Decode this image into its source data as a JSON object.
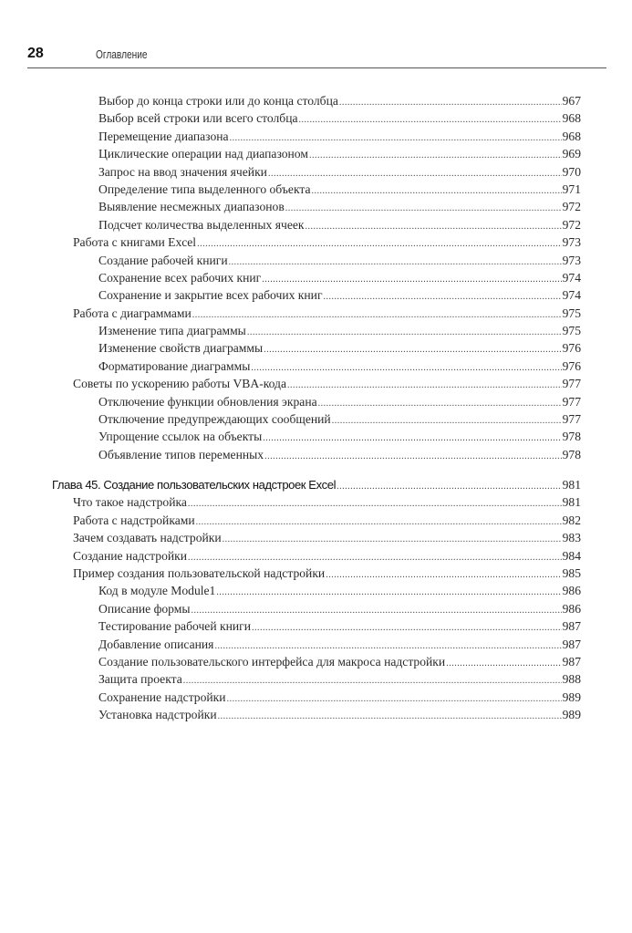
{
  "header": {
    "page_number": "28",
    "running_title": "Оглавление"
  },
  "block1": [
    {
      "level": 1,
      "title": "Выбор до конца строки или до конца столбца",
      "page": "967"
    },
    {
      "level": 1,
      "title": "Выбор всей строки или всего столбца",
      "page": "968"
    },
    {
      "level": 1,
      "title": "Перемещение диапазона",
      "page": "968"
    },
    {
      "level": 1,
      "title": "Циклические операции над диапазоном",
      "page": "969"
    },
    {
      "level": 1,
      "title": "Запрос на ввод значения ячейки",
      "page": "970"
    },
    {
      "level": 1,
      "title": "Определение типа выделенного объекта",
      "page": "971"
    },
    {
      "level": 1,
      "title": "Выявление несмежных диапазонов",
      "page": "972"
    },
    {
      "level": 1,
      "title": "Подсчет количества выделенных ячеек",
      "page": "972"
    },
    {
      "level": 0,
      "title": "Работа с книгами Excel",
      "page": "973"
    },
    {
      "level": 1,
      "title": "Создание рабочей книги",
      "page": "973"
    },
    {
      "level": 1,
      "title": "Сохранение всех рабочих книг",
      "page": "974"
    },
    {
      "level": 1,
      "title": "Сохранение и закрытие всех рабочих книг",
      "page": "974"
    },
    {
      "level": 0,
      "title": "Работа с диаграммами",
      "page": "975"
    },
    {
      "level": 1,
      "title": "Изменение типа диаграммы",
      "page": "975"
    },
    {
      "level": 1,
      "title": "Изменение свойств диаграммы",
      "page": "976"
    },
    {
      "level": 1,
      "title": "Форматирование диаграммы",
      "page": "976"
    },
    {
      "level": 0,
      "title": "Советы по ускорению работы VBA-кода",
      "page": "977"
    },
    {
      "level": 1,
      "title": "Отключение функции обновления экрана",
      "page": "977"
    },
    {
      "level": 1,
      "title": "Отключение предупреждающих сообщений",
      "page": "977"
    },
    {
      "level": 1,
      "title": "Упрощение ссылок на объекты",
      "page": "978"
    },
    {
      "level": 1,
      "title": "Объявление типов переменных",
      "page": "978"
    }
  ],
  "chapter": {
    "title": "Глава 45. Создание пользовательских надстроек Excel",
    "page": "981"
  },
  "block2": [
    {
      "level": 0,
      "title": "Что такое надстройка",
      "page": "981"
    },
    {
      "level": 0,
      "title": "Работа с надстройками",
      "page": "982"
    },
    {
      "level": 0,
      "title": "Зачем создавать надстройки",
      "page": "983"
    },
    {
      "level": 0,
      "title": "Создание надстройки",
      "page": "984"
    },
    {
      "level": 0,
      "title": "Пример создания пользовательской надстройки",
      "page": "985"
    },
    {
      "level": 1,
      "title": "Код в модуле Module1",
      "page": "986"
    },
    {
      "level": 1,
      "title": "Описание формы",
      "page": "986"
    },
    {
      "level": 1,
      "title": "Тестирование рабочей книги",
      "page": "987"
    },
    {
      "level": 1,
      "title": "Добавление описания",
      "page": "987"
    },
    {
      "level": 1,
      "title": "Создание пользовательского интерфейса для макроса надстройки",
      "page": "987"
    },
    {
      "level": 1,
      "title": "Защита проекта",
      "page": "988"
    },
    {
      "level": 1,
      "title": "Сохранение надстройки",
      "page": "989"
    },
    {
      "level": 1,
      "title": "Установка надстройки",
      "page": "989"
    }
  ]
}
